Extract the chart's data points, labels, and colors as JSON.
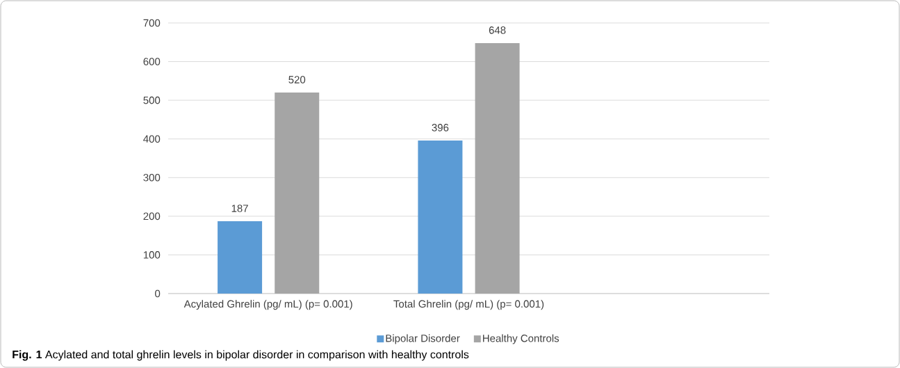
{
  "chart_data": {
    "type": "bar",
    "categories": [
      "Acylated Ghrelin (pg/ mL) (p= 0.001)",
      "Total Ghrelin (pg/ mL) (p= 0.001)",
      null
    ],
    "series": [
      {
        "name": "Bipolar Disorder",
        "color": "#5b9bd5",
        "values": [
          187,
          396,
          null
        ]
      },
      {
        "name": "Healthy Controls",
        "color": "#a5a5a5",
        "values": [
          520,
          648,
          null
        ]
      }
    ],
    "ylim": [
      0,
      700
    ],
    "yticks": [
      0,
      100,
      200,
      300,
      400,
      500,
      600,
      700
    ],
    "grid": "y",
    "legend": "bottom",
    "data_labels": true,
    "annotations": [
      "**Fig. 1**  Acylated and total ghrelin levels in bipolar disorder in comparison with healthy controls"
    ]
  }
}
